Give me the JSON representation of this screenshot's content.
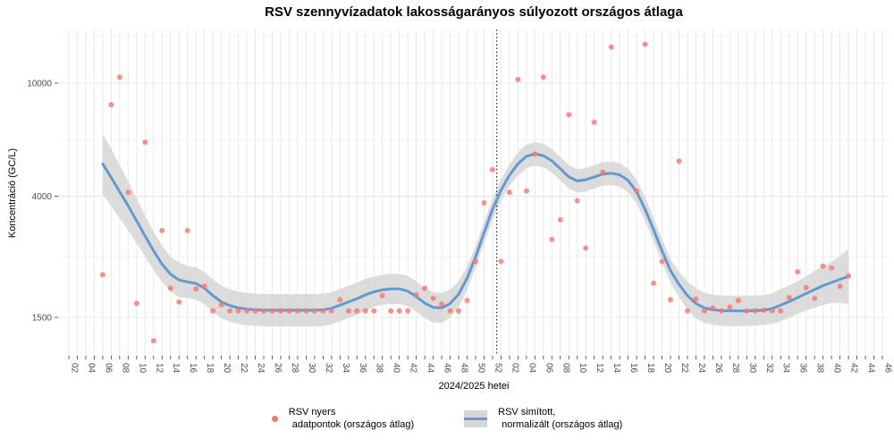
{
  "colors": {
    "point": "#F8766D",
    "line": "#6399CE",
    "ribbon": "#D6D6D6",
    "grid_major": "#E8E8E8",
    "grid_minor": "#F3F3F3",
    "tick": "#333333",
    "axis_text": "#4D4D4D",
    "divider": "#000000",
    "title_text": "#000000"
  },
  "chart_data": {
    "type": "scatter",
    "subtype": "scatter-with-smoothed-line-and-ribbon",
    "title": "RSV szennyvízadatok lakosságarányos súlyozott országos átlaga",
    "xlabel": "2024/2025 hetei",
    "ylabel": "Koncentráció (GC/L)",
    "y_scale": "log10",
    "ylim": [
      1100,
      15500
    ],
    "y_ticks": [
      10000,
      4000,
      1500
    ],
    "y_minor_gridlines": [
      14700,
      6300,
      2450
    ],
    "grid": "on",
    "legend_position": "bottom",
    "weeks_total": 97,
    "x_tick_every_n_weeks": 2,
    "x_tick_week_labels": [
      "02",
      "04",
      "06",
      "08",
      "10",
      "12",
      "14",
      "16",
      "18",
      "20",
      "22",
      "24",
      "26",
      "28",
      "30",
      "32",
      "34",
      "36",
      "38",
      "40",
      "42",
      "44",
      "46",
      "48",
      "50",
      "52",
      "02",
      "04",
      "06",
      "08",
      "10",
      "12",
      "14",
      "16",
      "18",
      "20",
      "22",
      "24",
      "26",
      "28",
      "30",
      "32",
      "34",
      "36",
      "38",
      "40",
      "42",
      "44",
      "46"
    ],
    "year_divider_between": [
      "2024-52",
      "2025-01"
    ],
    "series": [
      {
        "name": "RSV nyers adatpontok (országos átlag)",
        "type": "scatter",
        "points": [
          [
            "2024-06",
            2120
          ],
          [
            "2024-07",
            8400
          ],
          [
            "2024-08",
            10500
          ],
          [
            "2024-09",
            4130
          ],
          [
            "2024-10",
            1680
          ],
          [
            "2024-11",
            6200
          ],
          [
            "2024-12",
            1240
          ],
          [
            "2024-13",
            3030
          ],
          [
            "2024-14",
            1900
          ],
          [
            "2024-15",
            1700
          ],
          [
            "2024-16",
            3030
          ],
          [
            "2024-17",
            1890
          ],
          [
            "2024-18",
            1930
          ],
          [
            "2024-19",
            1580
          ],
          [
            "2024-20",
            1660
          ],
          [
            "2024-21",
            1580
          ],
          [
            "2024-22",
            1580
          ],
          [
            "2024-23",
            1580
          ],
          [
            "2024-24",
            1580
          ],
          [
            "2024-25",
            1580
          ],
          [
            "2024-26",
            1580
          ],
          [
            "2024-27",
            1580
          ],
          [
            "2024-28",
            1580
          ],
          [
            "2024-29",
            1580
          ],
          [
            "2024-30",
            1580
          ],
          [
            "2024-31",
            1580
          ],
          [
            "2024-32",
            1580
          ],
          [
            "2024-33",
            1580
          ],
          [
            "2024-34",
            1730
          ],
          [
            "2024-35",
            1580
          ],
          [
            "2024-36",
            1580
          ],
          [
            "2024-37",
            1580
          ],
          [
            "2024-38",
            1580
          ],
          [
            "2024-39",
            1790
          ],
          [
            "2024-40",
            1580
          ],
          [
            "2024-41",
            1580
          ],
          [
            "2024-42",
            1580
          ],
          [
            "2024-43",
            1800
          ],
          [
            "2024-44",
            1900
          ],
          [
            "2024-45",
            1750
          ],
          [
            "2024-46",
            1670
          ],
          [
            "2024-47",
            1580
          ],
          [
            "2024-48",
            1580
          ],
          [
            "2024-49",
            1720
          ],
          [
            "2024-50",
            2360
          ],
          [
            "2024-51",
            3790
          ],
          [
            "2024-52",
            4960
          ],
          [
            "2025-01",
            2360
          ],
          [
            "2025-02",
            4130
          ],
          [
            "2025-03",
            10300
          ],
          [
            "2025-04",
            4180
          ],
          [
            "2025-05",
            5630
          ],
          [
            "2025-06",
            10500
          ],
          [
            "2025-07",
            2820
          ],
          [
            "2025-08",
            3310
          ],
          [
            "2025-09",
            7750
          ],
          [
            "2025-10",
            3860
          ],
          [
            "2025-11",
            2630
          ],
          [
            "2025-12",
            7290
          ],
          [
            "2025-13",
            4860
          ],
          [
            "2025-14",
            13400
          ],
          [
            "2025-17",
            4170
          ],
          [
            "2025-18",
            13700
          ],
          [
            "2025-19",
            1980
          ],
          [
            "2025-20",
            2360
          ],
          [
            "2025-21",
            1730
          ],
          [
            "2025-22",
            5320
          ],
          [
            "2025-23",
            1580
          ],
          [
            "2025-24",
            1740
          ],
          [
            "2025-25",
            1580
          ],
          [
            "2025-26",
            1620
          ],
          [
            "2025-27",
            1580
          ],
          [
            "2025-28",
            1630
          ],
          [
            "2025-29",
            1720
          ],
          [
            "2025-30",
            1580
          ],
          [
            "2025-31",
            1580
          ],
          [
            "2025-32",
            1590
          ],
          [
            "2025-33",
            1580
          ],
          [
            "2025-34",
            1580
          ],
          [
            "2025-35",
            1760
          ],
          [
            "2025-36",
            2170
          ],
          [
            "2025-37",
            1910
          ],
          [
            "2025-38",
            1750
          ],
          [
            "2025-39",
            2270
          ],
          [
            "2025-40",
            2240
          ],
          [
            "2025-41",
            1930
          ],
          [
            "2025-42",
            2100
          ]
        ]
      },
      {
        "name": "RSV simított, normalizált (országos átlag)",
        "type": "line+ribbon",
        "points": [
          [
            "2024-06",
            5200,
            1.28
          ],
          [
            "2024-07",
            4650,
            1.26
          ],
          [
            "2024-08",
            4150,
            1.24
          ],
          [
            "2024-09",
            3700,
            1.22
          ],
          [
            "2024-10",
            3280,
            1.2
          ],
          [
            "2024-11",
            2900,
            1.18
          ],
          [
            "2024-12",
            2570,
            1.17
          ],
          [
            "2024-13",
            2310,
            1.16
          ],
          [
            "2024-14",
            2130,
            1.15
          ],
          [
            "2024-15",
            2030,
            1.15
          ],
          [
            "2024-16",
            2000,
            1.14
          ],
          [
            "2024-17",
            1975,
            1.14
          ],
          [
            "2024-18",
            1900,
            1.14
          ],
          [
            "2024-19",
            1790,
            1.14
          ],
          [
            "2024-20",
            1700,
            1.14
          ],
          [
            "2024-21",
            1650,
            1.14
          ],
          [
            "2024-22",
            1620,
            1.14
          ],
          [
            "2024-23",
            1605,
            1.14
          ],
          [
            "2024-24",
            1595,
            1.14
          ],
          [
            "2024-25",
            1590,
            1.14
          ],
          [
            "2024-26",
            1590,
            1.14
          ],
          [
            "2024-27",
            1590,
            1.14
          ],
          [
            "2024-28",
            1590,
            1.14
          ],
          [
            "2024-29",
            1590,
            1.14
          ],
          [
            "2024-30",
            1590,
            1.14
          ],
          [
            "2024-31",
            1590,
            1.14
          ],
          [
            "2024-32",
            1595,
            1.14
          ],
          [
            "2024-33",
            1615,
            1.14
          ],
          [
            "2024-34",
            1655,
            1.14
          ],
          [
            "2024-35",
            1700,
            1.14
          ],
          [
            "2024-36",
            1745,
            1.14
          ],
          [
            "2024-37",
            1800,
            1.14
          ],
          [
            "2024-38",
            1845,
            1.13
          ],
          [
            "2024-39",
            1875,
            1.13
          ],
          [
            "2024-40",
            1890,
            1.13
          ],
          [
            "2024-41",
            1890,
            1.13
          ],
          [
            "2024-42",
            1855,
            1.13
          ],
          [
            "2024-43",
            1775,
            1.13
          ],
          [
            "2024-44",
            1685,
            1.13
          ],
          [
            "2024-45",
            1625,
            1.13
          ],
          [
            "2024-46",
            1620,
            1.13
          ],
          [
            "2024-47",
            1680,
            1.12
          ],
          [
            "2024-48",
            1810,
            1.11
          ],
          [
            "2024-49",
            2060,
            1.1
          ],
          [
            "2024-50",
            2450,
            1.09
          ],
          [
            "2024-51",
            2980,
            1.09
          ],
          [
            "2024-52",
            3600,
            1.09
          ],
          [
            "2025-01",
            4200,
            1.09
          ],
          [
            "2025-02",
            4750,
            1.09
          ],
          [
            "2025-03",
            5200,
            1.1
          ],
          [
            "2025-04",
            5530,
            1.1
          ],
          [
            "2025-05",
            5640,
            1.1
          ],
          [
            "2025-06",
            5560,
            1.1
          ],
          [
            "2025-07",
            5330,
            1.1
          ],
          [
            "2025-08",
            5000,
            1.1
          ],
          [
            "2025-09",
            4680,
            1.1
          ],
          [
            "2025-10",
            4530,
            1.1
          ],
          [
            "2025-11",
            4570,
            1.1
          ],
          [
            "2025-12",
            4680,
            1.1
          ],
          [
            "2025-13",
            4790,
            1.1
          ],
          [
            "2025-14",
            4820,
            1.1
          ],
          [
            "2025-15",
            4760,
            1.1
          ],
          [
            "2025-16",
            4550,
            1.1
          ],
          [
            "2025-17",
            4150,
            1.1
          ],
          [
            "2025-18",
            3600,
            1.1
          ],
          [
            "2025-19",
            3050,
            1.1
          ],
          [
            "2025-20",
            2570,
            1.1
          ],
          [
            "2025-21",
            2190,
            1.1
          ],
          [
            "2025-22",
            1960,
            1.11
          ],
          [
            "2025-23",
            1790,
            1.12
          ],
          [
            "2025-24",
            1680,
            1.13
          ],
          [
            "2025-25",
            1620,
            1.13
          ],
          [
            "2025-26",
            1595,
            1.13
          ],
          [
            "2025-27",
            1585,
            1.13
          ],
          [
            "2025-28",
            1580,
            1.13
          ],
          [
            "2025-29",
            1580,
            1.13
          ],
          [
            "2025-30",
            1580,
            1.13
          ],
          [
            "2025-31",
            1585,
            1.13
          ],
          [
            "2025-32",
            1590,
            1.13
          ],
          [
            "2025-33",
            1610,
            1.13
          ],
          [
            "2025-34",
            1655,
            1.14
          ],
          [
            "2025-35",
            1705,
            1.14
          ],
          [
            "2025-36",
            1760,
            1.14
          ],
          [
            "2025-37",
            1820,
            1.15
          ],
          [
            "2025-38",
            1880,
            1.16
          ],
          [
            "2025-39",
            1940,
            1.17
          ],
          [
            "2025-40",
            1990,
            1.18
          ],
          [
            "2025-41",
            2040,
            1.21
          ],
          [
            "2025-42",
            2090,
            1.25
          ]
        ]
      }
    ]
  },
  "legend": {
    "raw": {
      "line1": "RSV nyers",
      "line2": "adatpontok (országos átlag)"
    },
    "smoothed": {
      "line1": "RSV simított,",
      "line2": "normalizált (országos átlag)"
    }
  }
}
